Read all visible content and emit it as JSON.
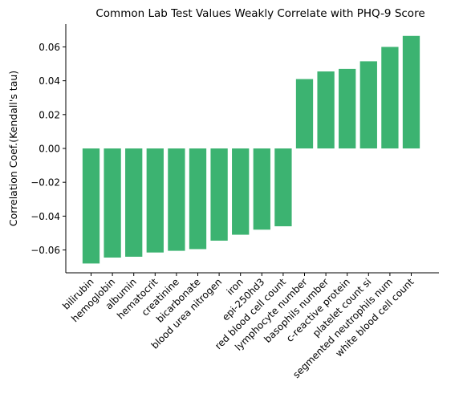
{
  "chart_data": {
    "type": "bar",
    "title": "Common Lab Test Values Weakly Correlate with PHQ-9 Score",
    "xlabel": "",
    "ylabel": "Correlation Coef.(Kendall's tau)",
    "bar_color": "#3cb371",
    "ylim": [
      -0.0735,
      0.0735
    ],
    "yticks": [
      -0.06,
      -0.04,
      -0.02,
      0.0,
      0.02,
      0.04,
      0.06
    ],
    "ytick_labels": [
      "−0.06",
      "−0.04",
      "−0.02",
      "0.00",
      "0.02",
      "0.04",
      "0.06"
    ],
    "grid": false,
    "categories": [
      "bilirubin",
      "hemoglobin",
      "albumin",
      "hematocrit",
      "creatinine",
      "bicarbonate",
      "blood urea nitrogen",
      "iron",
      "epi-250hd3",
      "red blood cell count",
      "lymphocyte number",
      "basophils number",
      "c-reactive protein",
      "platelet count si",
      "segmented neutrophils num",
      "white blood cell count"
    ],
    "values": [
      -0.068,
      -0.0645,
      -0.064,
      -0.0615,
      -0.0605,
      -0.0595,
      -0.0545,
      -0.051,
      -0.048,
      -0.046,
      0.041,
      0.0455,
      0.047,
      0.0515,
      0.06,
      0.0665
    ]
  }
}
